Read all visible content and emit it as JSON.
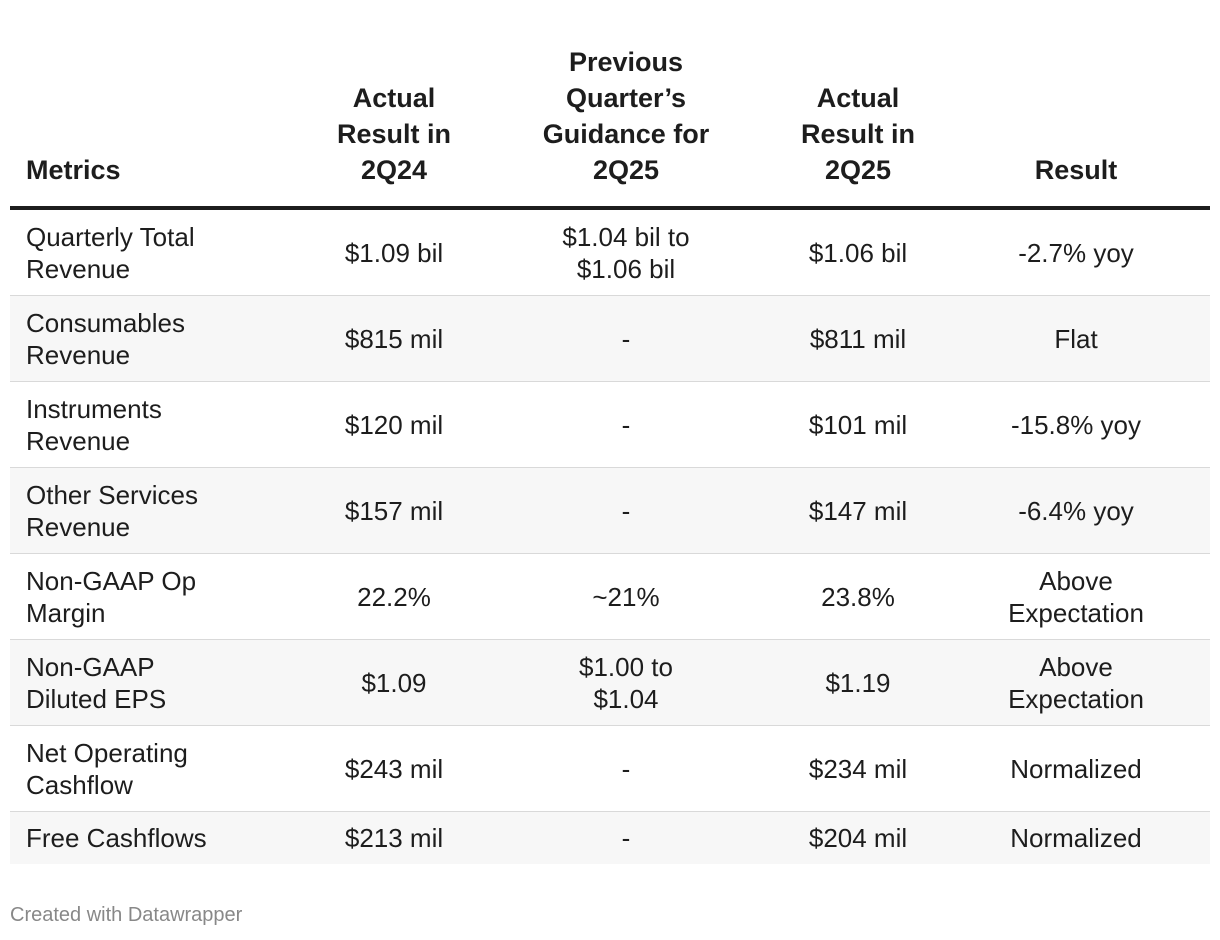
{
  "chart_data": {
    "type": "table",
    "columns": [
      "Metrics",
      "Actual\nResult in\n2Q24",
      "Previous\nQuarter’s\nGuidance for\n2Q25",
      "Actual\nResult in\n2Q25",
      "Result"
    ],
    "rows": [
      [
        "Quarterly Total\nRevenue",
        "$1.09 bil",
        "$1.04 bil to\n$1.06 bil",
        "$1.06 bil",
        "-2.7% yoy"
      ],
      [
        "Consumables\nRevenue",
        "$815 mil",
        "-",
        "$811 mil",
        "Flat"
      ],
      [
        "Instruments\nRevenue",
        "$120 mil",
        "-",
        "$101 mil",
        "-15.8% yoy"
      ],
      [
        "Other Services\nRevenue",
        "$157 mil",
        "-",
        "$147 mil",
        "-6.4% yoy"
      ],
      [
        "Non-GAAP Op\nMargin",
        "22.2%",
        "~21%",
        "23.8%",
        "Above\nExpectation"
      ],
      [
        "Non-GAAP\nDiluted EPS",
        "$1.09",
        "$1.00 to\n$1.04",
        "$1.19",
        "Above\nExpectation"
      ],
      [
        "Net Operating\nCashflow",
        "$243 mil",
        "-",
        "$234 mil",
        "Normalized"
      ],
      [
        "Free Cashflows",
        "$213 mil",
        "-",
        "$204 mil",
        "Normalized"
      ]
    ]
  },
  "footer": "Created with Datawrapper"
}
